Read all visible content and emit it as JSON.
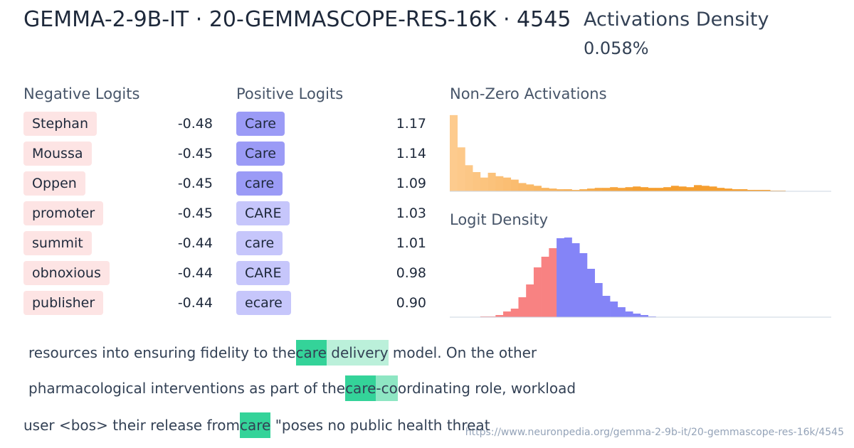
{
  "header": {
    "title": "GEMMA-2-9B-IT · 20-GEMMASCOPE-RES-16K · 4545",
    "density_label": "Activations Density",
    "density_value": "0.058%"
  },
  "negative_logits": {
    "heading": "Negative Logits",
    "color": "#fde4e4",
    "items": [
      {
        "token": "Stephan",
        "value": -0.48
      },
      {
        "token": "Moussa",
        "value": -0.45
      },
      {
        "token": "Oppen",
        "value": -0.45
      },
      {
        "token": "promoter",
        "value": -0.45
      },
      {
        "token": "summit",
        "value": -0.44
      },
      {
        "token": "obnoxious",
        "value": -0.44
      },
      {
        "token": "publisher",
        "value": -0.44
      }
    ]
  },
  "positive_logits": {
    "heading": "Positive Logits",
    "items": [
      {
        "token": "Care",
        "value": 1.17,
        "color": "#9b9bf6"
      },
      {
        "token": "Care",
        "value": 1.14,
        "color": "#9b9bf6"
      },
      {
        "token": "care",
        "value": 1.09,
        "color": "#9b9bf6"
      },
      {
        "token": "CARE",
        "value": 1.03,
        "color": "#c6c6fb"
      },
      {
        "token": "care",
        "value": 1.01,
        "color": "#c6c6fb"
      },
      {
        "token": "CARE",
        "value": 0.98,
        "color": "#c6c6fb"
      },
      {
        "token": "ecare",
        "value": {
          "value": 0.9,
          "label": "0.90"
        },
        "color": "#c6c6fb"
      }
    ]
  },
  "activations_histogram": {
    "type": "bar",
    "title": "Non-Zero Activations",
    "colors": [
      "#fdcb8e",
      "#f59e2f"
    ],
    "ylim": [
      0,
      115
    ],
    "values": [
      111,
      64,
      38,
      28,
      20,
      27,
      22,
      20,
      17,
      12,
      10,
      8,
      5,
      4,
      3,
      3,
      2,
      3,
      4,
      5,
      5,
      6,
      5,
      6,
      7,
      6,
      5,
      5,
      6,
      8,
      7,
      6,
      9,
      8,
      7,
      5,
      4,
      3,
      3,
      2,
      2,
      2,
      1,
      1,
      0,
      0,
      0,
      0,
      0,
      0
    ]
  },
  "logit_density": {
    "type": "histogram",
    "title": "Logit Density",
    "xlim": [
      -0.7,
      1.8
    ],
    "ylim": [
      0,
      115
    ],
    "negative_color": "#f88282",
    "positive_color": "#8484f7",
    "bins": [
      -0.5,
      -0.45,
      -0.4,
      -0.35,
      -0.3,
      -0.25,
      -0.2,
      -0.15,
      -0.1,
      -0.05,
      0,
      0.05,
      0.1,
      0.15,
      0.2,
      0.25,
      0.3,
      0.35,
      0.4,
      0.45,
      0.5,
      0.55,
      0.6,
      0.65
    ],
    "values": [
      1,
      1,
      3,
      8,
      12,
      28,
      46,
      70,
      85,
      97,
      111,
      112,
      104,
      90,
      68,
      48,
      30,
      22,
      14,
      8,
      5,
      3,
      1
    ]
  },
  "examples": [
    [
      {
        "text": "resources into ensuring fidelity to the"
      },
      {
        "text": "care",
        "highlight": "#34d399"
      },
      {
        "text": " delivery",
        "highlight": "#bbf0da"
      },
      {
        "text": " model"
      },
      {
        "text": "."
      },
      {
        "text": " On the other"
      }
    ],
    [
      {
        "text": "pharmacological interventions as part of the"
      },
      {
        "text": "care",
        "highlight": "#34d399"
      },
      {
        "text": "-co",
        "highlight": "#8ee6c3"
      },
      {
        "text": "ordinating"
      },
      {
        "text": " role, workload"
      }
    ],
    [
      {
        "text": "user <bos>"
      },
      {
        "text": " their release from"
      },
      {
        "text": "care",
        "highlight": "#34d399"
      },
      {
        "text": " \"poses"
      },
      {
        "text": " no public health threat"
      }
    ]
  ],
  "url": "https://www.neuronpedia.org/gemma-2-9b-it/20-gemmascope-res-16k/4545"
}
